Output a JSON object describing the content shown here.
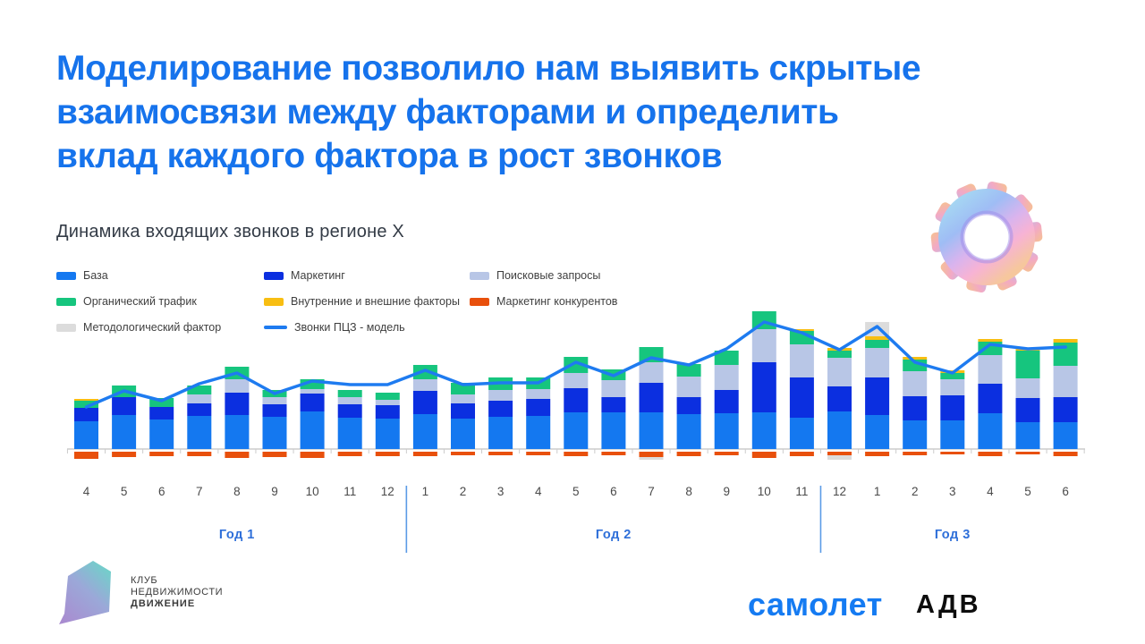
{
  "slide": {
    "title_lines": [
      "Моделирование позволило нам выявить скрытые",
      "взаимосвязи между факторами и определить",
      "вклад каждого фактора в рост звонков"
    ]
  },
  "icons": {
    "gear": "gear-3d-pastel"
  },
  "legend": {
    "items": [
      {
        "label": "База",
        "color": "#1478F0",
        "type": "box"
      },
      {
        "label": "Маркетинг",
        "color": "#0B2FE0",
        "type": "box"
      },
      {
        "label": "Поисковые запросы",
        "color": "#B8C6E6",
        "type": "box"
      },
      {
        "label": "Органический трафик",
        "color": "#16C57E",
        "type": "box"
      },
      {
        "label": "Внутренние и внешние факторы",
        "color": "#F8BE12",
        "type": "box"
      },
      {
        "label": "Маркетинг конкурентов",
        "color": "#E8500C",
        "type": "box"
      },
      {
        "label": "Методологический фактор",
        "color": "#DCDCDC",
        "type": "box"
      },
      {
        "label": "Звонки ПЦЗ - модель",
        "color": "#1E7BF0",
        "type": "line"
      }
    ]
  },
  "chart_data": {
    "type": "bar",
    "subtype": "stacked-bars-with-line",
    "title": "Динамика входящих звонков в регионе X",
    "categories": [
      "4",
      "5",
      "6",
      "7",
      "8",
      "9",
      "10",
      "11",
      "12",
      "1",
      "2",
      "3",
      "4",
      "5",
      "6",
      "7",
      "8",
      "9",
      "10",
      "11",
      "12",
      "1",
      "2",
      "3",
      "4",
      "5",
      "6"
    ],
    "year_groups": [
      {
        "label": "Год 1",
        "from": 0,
        "to": 8
      },
      {
        "label": "Год 2",
        "from": 9,
        "to": 19
      },
      {
        "label": "Год 3",
        "from": 20,
        "to": 26
      }
    ],
    "ylim": [
      -15,
      160
    ],
    "grid": false,
    "legend_position": "top",
    "series": [
      {
        "name": "База",
        "color": "#1478F0",
        "values": [
          31,
          38,
          33,
          37,
          38,
          36,
          42,
          35,
          34,
          39,
          34,
          36,
          37,
          41,
          41,
          41,
          39,
          40,
          41,
          35,
          42,
          38,
          32,
          32,
          40,
          30,
          30
        ]
      },
      {
        "name": "Маркетинг",
        "color": "#0B2FE0",
        "values": [
          15,
          20,
          14,
          14,
          25,
          14,
          20,
          15,
          15,
          26,
          17,
          18,
          19,
          27,
          17,
          33,
          19,
          26,
          56,
          45,
          28,
          42,
          27,
          28,
          33,
          27,
          28
        ]
      },
      {
        "name": "Поисковые запросы",
        "color": "#B8C6E6",
        "values": [
          0,
          0,
          0,
          10,
          15,
          8,
          5,
          8,
          6,
          13,
          10,
          12,
          11,
          17,
          19,
          23,
          23,
          28,
          37,
          37,
          32,
          33,
          28,
          18,
          32,
          22,
          35
        ]
      },
      {
        "name": "Органический трафик",
        "color": "#16C57E",
        "values": [
          8,
          13,
          10,
          10,
          14,
          8,
          11,
          8,
          8,
          16,
          13,
          14,
          13,
          18,
          12,
          17,
          14,
          16,
          20,
          15,
          8,
          9,
          13,
          7,
          15,
          31,
          26
        ]
      },
      {
        "name": "Внутренние и внешние факторы",
        "color": "#F8BE12",
        "values": [
          2,
          0,
          0,
          0,
          0,
          0,
          0,
          0,
          0,
          0,
          0,
          0,
          0,
          0,
          0,
          0,
          0,
          0,
          0,
          2,
          3,
          4,
          3,
          3,
          3,
          3,
          4
        ]
      },
      {
        "name": "Методологический фактор",
        "color": "#DCDCDC",
        "values": [
          0,
          0,
          0,
          0,
          0,
          0,
          0,
          0,
          0,
          0,
          0,
          0,
          0,
          0,
          0,
          0,
          0,
          0,
          0,
          0,
          0,
          16,
          0,
          0,
          0,
          0,
          0
        ]
      }
    ],
    "negative_series": [
      {
        "name": "Маркетинг конкурентов",
        "color": "#E8500C",
        "values": [
          -8,
          -6,
          -5,
          -5,
          -7,
          -6,
          -7,
          -5,
          -5,
          -5,
          -4,
          -4,
          -4,
          -5,
          -4,
          -6,
          -5,
          -4,
          -7,
          -5,
          -4,
          -5,
          -4,
          -3,
          -5,
          -3,
          -5
        ]
      },
      {
        "name": "Методологический фактор",
        "color": "#DCDCDC",
        "values": [
          0,
          0,
          0,
          0,
          0,
          0,
          0,
          0,
          0,
          0,
          0,
          0,
          0,
          0,
          0,
          -3,
          0,
          0,
          0,
          0,
          -5,
          0,
          0,
          0,
          0,
          0,
          0
        ]
      }
    ],
    "line_series": {
      "name": "Звонки ПЦЗ - модель",
      "color": "#1E7BF0",
      "values": [
        47,
        65,
        54,
        73,
        85,
        62,
        76,
        72,
        72,
        88,
        72,
        74,
        74,
        97,
        82,
        102,
        94,
        112,
        142,
        130,
        111,
        137,
        97,
        85,
        117,
        112,
        114
      ]
    }
  },
  "footer": {
    "club_lines": [
      "КЛУБ",
      "НЕДВИЖИМОСТИ",
      "ДВИЖЕНИЕ"
    ],
    "samolet": "самолет",
    "adv": "АДВ"
  }
}
